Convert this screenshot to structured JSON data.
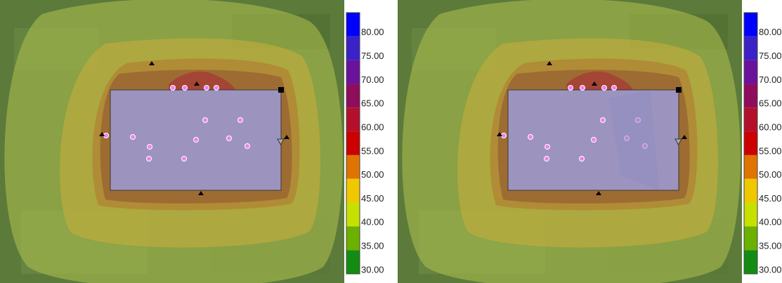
{
  "panels": [
    {
      "legend": [
        {
          "label": "80.00",
          "color": "#0000ff"
        },
        {
          "label": "75.00",
          "color": "#3a22c8"
        },
        {
          "label": "70.00",
          "color": "#6a129c"
        },
        {
          "label": "65.00",
          "color": "#900c5c"
        },
        {
          "label": "60.00",
          "color": "#b4102c"
        },
        {
          "label": "55.00",
          "color": "#cc0000"
        },
        {
          "label": "50.00",
          "color": "#e07400"
        },
        {
          "label": "45.00",
          "color": "#f0c800"
        },
        {
          "label": "40.00",
          "color": "#c6e000"
        },
        {
          "label": "35.00",
          "color": "#6cb000"
        },
        {
          "label": "30.00",
          "color": "#148c14"
        }
      ]
    },
    {
      "legend": [
        {
          "label": "80.00",
          "color": "#0000ff"
        },
        {
          "label": "75.00",
          "color": "#3a22c8"
        },
        {
          "label": "70.00",
          "color": "#6a129c"
        },
        {
          "label": "65.00",
          "color": "#900c5c"
        },
        {
          "label": "60.00",
          "color": "#b4102c"
        },
        {
          "label": "55.00",
          "color": "#cc0000"
        },
        {
          "label": "50.00",
          "color": "#e07400"
        },
        {
          "label": "45.00",
          "color": "#f0c800"
        },
        {
          "label": "40.00",
          "color": "#c6e000"
        },
        {
          "label": "35.00",
          "color": "#6cb000"
        },
        {
          "label": "30.00",
          "color": "#148c14"
        }
      ]
    }
  ]
}
